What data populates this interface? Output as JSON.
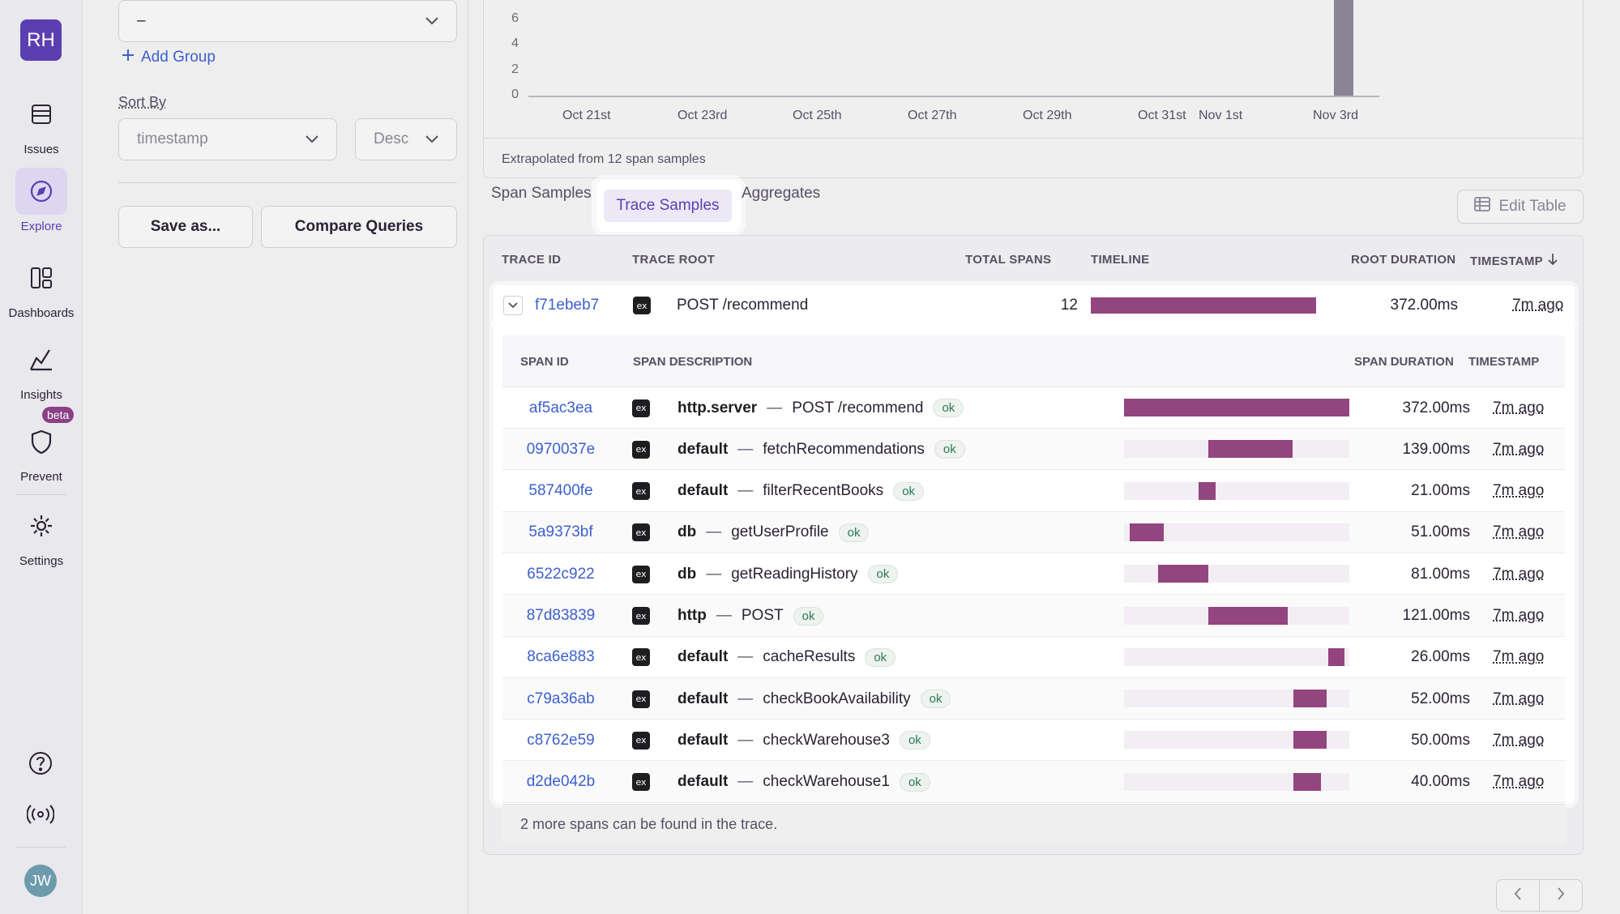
{
  "sidebar": {
    "org_initials": "RH",
    "items": [
      {
        "label": "Issues",
        "icon": "issues-icon"
      },
      {
        "label": "Explore",
        "icon": "compass-icon",
        "active": true
      },
      {
        "label": "Dashboards",
        "icon": "dashboards-icon"
      },
      {
        "label": "Insights",
        "icon": "insights-icon"
      },
      {
        "label": "Prevent",
        "icon": "shield-icon",
        "badge": "beta"
      },
      {
        "label": "Settings",
        "icon": "gear-icon"
      }
    ],
    "user_initials": "JW"
  },
  "left_panel": {
    "group_select_value": "–",
    "add_group": "Add Group",
    "sort_by_label": "Sort By",
    "sort_field": "timestamp",
    "sort_order": "Desc",
    "save_as": "Save as...",
    "compare_queries": "Compare Queries"
  },
  "chart": {
    "y_ticks": [
      "6",
      "4",
      "2",
      "0"
    ],
    "x_ticks": [
      "Oct 21st",
      "Oct 23rd",
      "Oct 25th",
      "Oct 27th",
      "Oct 29th",
      "Oct 31st",
      "Nov 1st",
      "Nov 3rd"
    ],
    "footer": "Extrapolated from 12 span samples"
  },
  "tabs": [
    "Span Samples",
    "Trace Samples",
    "Aggregates"
  ],
  "active_tab": "Trace Samples",
  "edit_table": "Edit Table",
  "columns": [
    "TRACE ID",
    "TRACE ROOT",
    "TOTAL SPANS",
    "TIMELINE",
    "ROOT DURATION",
    "TIMESTAMP"
  ],
  "trace": {
    "id": "f71ebeb7",
    "root": "POST /recommend",
    "total_spans": "12",
    "root_duration": "372.00ms",
    "timestamp": "7m ago"
  },
  "span_columns": [
    "SPAN ID",
    "SPAN DESCRIPTION",
    "SPAN DURATION",
    "TIMESTAMP"
  ],
  "spans": [
    {
      "id": "af5ac3ea",
      "op": "http.server",
      "desc": "POST /recommend",
      "status": "ok",
      "duration": "372.00ms",
      "timestamp": "7m ago",
      "start": 0.0,
      "width": 1.0
    },
    {
      "id": "0970037e",
      "op": "default",
      "desc": "fetchRecommendations",
      "status": "ok",
      "duration": "139.00ms",
      "timestamp": "7m ago",
      "start": 0.375,
      "width": 0.374
    },
    {
      "id": "587400fe",
      "op": "default",
      "desc": "filterRecentBooks",
      "status": "ok",
      "duration": "21.00ms",
      "timestamp": "7m ago",
      "start": 0.33,
      "width": 0.075
    },
    {
      "id": "5a9373bf",
      "op": "db",
      "desc": "getUserProfile",
      "status": "ok",
      "duration": "51.00ms",
      "timestamp": "7m ago",
      "start": 0.025,
      "width": 0.15
    },
    {
      "id": "6522c922",
      "op": "db",
      "desc": "getReadingHistory",
      "status": "ok",
      "duration": "81.00ms",
      "timestamp": "7m ago",
      "start": 0.15,
      "width": 0.225
    },
    {
      "id": "87d83839",
      "op": "http",
      "desc": "POST",
      "status": "ok",
      "duration": "121.00ms",
      "timestamp": "7m ago",
      "start": 0.375,
      "width": 0.35
    },
    {
      "id": "8ca6e883",
      "op": "default",
      "desc": "cacheResults",
      "status": "ok",
      "duration": "26.00ms",
      "timestamp": "7m ago",
      "start": 0.905,
      "width": 0.075
    },
    {
      "id": "c79a36ab",
      "op": "default",
      "desc": "checkBookAvailability",
      "status": "ok",
      "duration": "52.00ms",
      "timestamp": "7m ago",
      "start": 0.75,
      "width": 0.15
    },
    {
      "id": "c8762e59",
      "op": "default",
      "desc": "checkWarehouse3",
      "status": "ok",
      "duration": "50.00ms",
      "timestamp": "7m ago",
      "start": 0.75,
      "width": 0.15
    },
    {
      "id": "d2de042b",
      "op": "default",
      "desc": "checkWarehouse1",
      "status": "ok",
      "duration": "40.00ms",
      "timestamp": "7m ago",
      "start": 0.75,
      "width": 0.125
    }
  ],
  "footnote": "2 more spans can be found in the trace.",
  "colors": {
    "accent": "#5b3fb1",
    "bar": "#93457f",
    "link": "#3c5fcf"
  }
}
